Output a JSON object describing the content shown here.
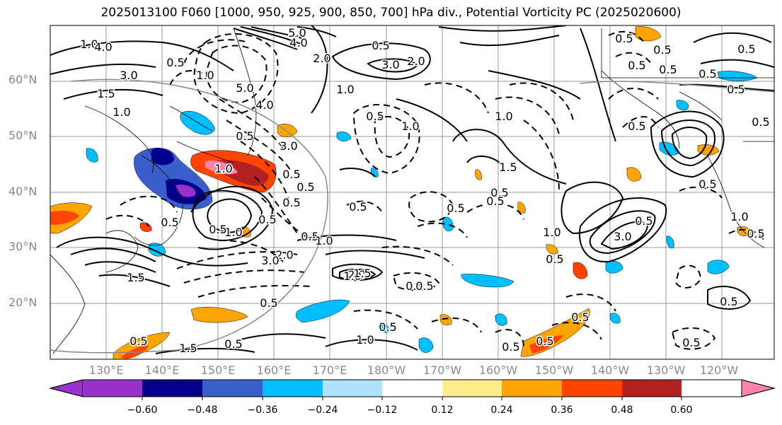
{
  "title": "2025013100 F060 [1000, 950, 925, 900, 850, 700] hPa div., Potential Vorticity PC (2025020600)",
  "lat_labels": [
    "60°N",
    "50°N",
    "40°N",
    "30°N",
    "20°N"
  ],
  "lon_labels": [
    "130°E",
    "140°E",
    "150°E",
    "160°E",
    "170°E",
    "180°W",
    "170°W",
    "160°W",
    "150°W",
    "140°W",
    "130°W",
    "120°W"
  ],
  "colorbar": {
    "ticks": [
      "−0.60",
      "−0.48",
      "−0.36",
      "−0.24",
      "−0.12",
      "0.12",
      "0.24",
      "0.36",
      "0.48",
      "0.60"
    ],
    "colors": [
      "#9932cc",
      "#00008b",
      "#3a5fcd",
      "#00bfff",
      "#b0e2ff",
      "#ffffff",
      "#ffec8b",
      "#ffa500",
      "#ff4500",
      "#b22222",
      "#ff82ab"
    ]
  },
  "contour_labels": [
    "1.0",
    "4.0",
    "3.0",
    "1.5",
    "1.0",
    "0.5",
    "5.0",
    "4.0",
    "2.0",
    "0.5",
    "3.0",
    "2.0",
    "1.0",
    "0.5",
    "1.0",
    "5.0",
    "4.0",
    "3.0",
    "0.5",
    "1.0",
    "0.5",
    "1.0",
    "1.0",
    "0.5",
    "0.5",
    "0.5",
    "1.5",
    "0.5",
    "0.5",
    "0.5",
    "1.0",
    "0.5",
    "2.0",
    "0.5",
    "3.0",
    "0.5",
    "0.5",
    "1.0",
    "2.0",
    "0.5",
    "1.5",
    "1.0",
    "0.5",
    "0.5",
    "1.0",
    "1.5",
    "0.5",
    "1.5",
    "1.0",
    "0.5",
    "0.5",
    "0.5",
    "3.0",
    "0.5",
    "0.5",
    "0.5",
    "0.5",
    "0.5",
    "0.5",
    "0.5",
    "0.5",
    "0.5",
    "1.0",
    "0.5",
    "0.5",
    "0.5",
    "0.5",
    "0.5",
    "0.5",
    "0.5",
    "0.5"
  ]
}
